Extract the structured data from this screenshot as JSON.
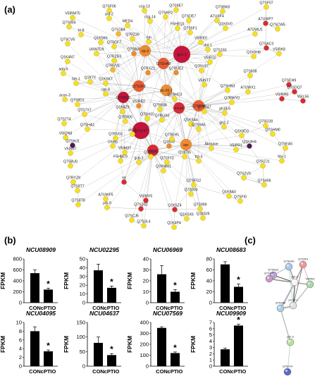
{
  "figure": {
    "panel_a_label": "(a)",
    "panel_b_label": "(b)",
    "panel_c_label": "(c)"
  },
  "network_a": {
    "node_colors": {
      "yellow": "#f6e020",
      "yellow_orange": "#f5b82a",
      "orange": "#f08a32",
      "red_orange": "#ea5a35",
      "red": "#d82a3a",
      "crimson": "#c4143e",
      "purple": "#4a1a5e"
    },
    "nodes": [
      {
        "id": "Q7SF06",
        "label": "Q7SF06",
        "color": "yellow",
        "hub": 0
      },
      {
        "id": "ccg-13",
        "label": "ccg-13",
        "color": "yellow",
        "hub": 0
      },
      {
        "id": "Q7S9E7",
        "label": "Q7S9E7",
        "color": "yellow",
        "hub": 0
      },
      {
        "id": "Q7SAP2",
        "label": "Q7SAP2",
        "color": "yellow",
        "hub": 0
      },
      {
        "id": "Q7SBK8",
        "label": "Q7SBK8",
        "color": "yellow",
        "hub": 0
      },
      {
        "id": "Q7SF07",
        "label": "Q7SF07",
        "color": "yellow",
        "hub": 0
      },
      {
        "id": "V5IRM75",
        "label": "V5IRM75",
        "color": "yellow",
        "hub": 0
      },
      {
        "id": "pol-2",
        "label": "pol-2",
        "color": "yellow",
        "hub": 0
      },
      {
        "id": "ccg-14",
        "label": "ccg-14",
        "color": "yellow",
        "hub": 0
      },
      {
        "id": "Q7SDE7",
        "label": "Q7SDE7",
        "color": "yellow",
        "hub": 0
      },
      {
        "id": "A7UXF4",
        "label": "A7UXF4",
        "color": "yellow",
        "hub": 0
      },
      {
        "id": "A7UWP7",
        "label": "A7UWP7",
        "color": "red",
        "hub": 0
      },
      {
        "id": "Q7S059",
        "label": "Q7S059",
        "color": "yellow",
        "hub": 0
      },
      {
        "id": "MED4",
        "label": "MED4",
        "color": "yellow",
        "hub": 0
      },
      {
        "id": "F5HEQ1",
        "label": "F5HEQ1",
        "color": "yellow",
        "hub": 0
      },
      {
        "id": "Q7S5F1",
        "label": "Q7S5F1",
        "color": "yellow",
        "hub": 0
      },
      {
        "id": "Q1K6V0",
        "label": "Q1K6V0",
        "color": "yellow",
        "hub": 0
      },
      {
        "id": "Q7SCW5",
        "label": "Q7SCW5",
        "color": "yellow",
        "hub": 0
      },
      {
        "id": "trl-8",
        "label": "trl-8",
        "color": "yellow",
        "hub": 0
      },
      {
        "id": "Q7S1B4",
        "label": "Q7S1B4",
        "color": "yellow_orange",
        "hub": 0
      },
      {
        "id": "Q7RZ39",
        "label": "Q7RZ39",
        "color": "yellow",
        "hub": 0
      },
      {
        "id": "rgn",
        "label": "rgn",
        "color": "yellow",
        "hub": 0
      },
      {
        "id": "gsh-3",
        "label": "gsh-3",
        "color": "crimson",
        "hub": 2
      },
      {
        "id": "V5IRE0",
        "label": "V5IRE0",
        "color": "yellow",
        "hub": 0
      },
      {
        "id": "A7UWU1",
        "label": "A7UWU1",
        "color": "yellow",
        "hub": 0
      },
      {
        "id": "Q7SCV5",
        "label": "Q7SCV5",
        "color": "yellow",
        "hub": 0
      },
      {
        "id": "Q1K5K6",
        "label": "Q1K5K6",
        "color": "yellow",
        "hub": 0
      },
      {
        "id": "Q7SCF7",
        "label": "Q7SCF7",
        "color": "yellow",
        "hub": 0
      },
      {
        "id": "dol-1",
        "label": "dol-1",
        "color": "yellow",
        "hub": 0
      },
      {
        "id": "Q7SAC3",
        "label": "Q7SAC3",
        "color": "red",
        "hub": 0
      },
      {
        "id": "V5IRK8",
        "label": "V5IRK8",
        "color": "yellow",
        "hub": 0
      },
      {
        "id": "U6W7D9",
        "label": "U6W7D9",
        "color": "yellow",
        "hub": 0
      },
      {
        "id": "Q7SBJ9",
        "label": "Q7SBJ9",
        "color": "orange",
        "hub": 0
      },
      {
        "id": "rip-3",
        "label": "rip-3",
        "color": "orange",
        "hub": 1
      },
      {
        "id": "Q7S150",
        "label": "Q7S150",
        "color": "yellow",
        "hub": 0
      },
      {
        "id": "Q1K6H6",
        "label": "Q1K6H6",
        "color": "yellow",
        "hub": 0
      },
      {
        "id": "Q1K4N7",
        "label": "Q1K4N7",
        "color": "yellow",
        "hub": 0
      },
      {
        "id": "Q7RZB3",
        "label": "Q7RZB3",
        "color": "yellow",
        "hub": 0
      },
      {
        "id": "Q7SHA9",
        "label": "Q7SHA9",
        "color": "red_orange",
        "hub": 1
      },
      {
        "id": "V5IR10",
        "label": "V5IR10",
        "color": "yellow",
        "hub": 0
      },
      {
        "id": "Q7RV37",
        "label": "Q7RV37",
        "color": "yellow",
        "hub": 0
      },
      {
        "id": "Q7S838",
        "label": "Q7S838",
        "color": "yellow",
        "hub": 0
      },
      {
        "id": "ada-5",
        "label": "ada-5",
        "color": "yellow",
        "hub": 0
      },
      {
        "id": "Q7RXZ1",
        "label": "Q7RXZ1",
        "color": "orange",
        "hub": 0
      },
      {
        "id": "Q7RUE2",
        "label": "Q7RUE2",
        "color": "orange",
        "hub": 0
      },
      {
        "id": "Q7RVV1",
        "label": "Q7RVV1",
        "color": "yellow_orange",
        "hub": 0
      },
      {
        "id": "fah-1",
        "label": "fah-1",
        "color": "yellow",
        "hub": 0
      },
      {
        "id": "Q1K7Y",
        "label": "Q1K7Y",
        "color": "yellow",
        "hub": 0
      },
      {
        "id": "Q1K6K7",
        "label": "Q1K6K7",
        "color": "yellow",
        "hub": 0
      },
      {
        "id": "Q7S3F3",
        "label": "Q7S3F3",
        "color": "red_orange",
        "hub": 1
      },
      {
        "id": "ph-26-1",
        "label": "ph-26-1",
        "color": "orange",
        "hub": 1
      },
      {
        "id": "V5INT7",
        "label": "V5INT7",
        "color": "yellow",
        "hub": 0
      },
      {
        "id": "Q7SHN3",
        "label": "Q7SHN3",
        "color": "yellow",
        "hub": 0
      },
      {
        "id": "A7UWX1",
        "label": "A7UWX1",
        "color": "yellow",
        "hub": 0
      },
      {
        "id": "Q7SEH9",
        "label": "Q7SEH9",
        "color": "red",
        "hub": 0
      },
      {
        "id": "Q7SDQ7",
        "label": "Q7SDQ7",
        "color": "red",
        "hub": 0
      },
      {
        "id": "acon-3",
        "label": "acon-3",
        "color": "yellow",
        "hub": 0
      },
      {
        "id": "Q7S8D1",
        "label": "Q7S8D1",
        "color": "yellow",
        "hub": 0
      },
      {
        "id": "cpr-8",
        "label": "cpr-8",
        "color": "yellow",
        "hub": 0
      },
      {
        "id": "Q7SAQ1",
        "label": "Q7SAQ1",
        "color": "crimson",
        "hub": 1
      },
      {
        "id": "Q7SHC3",
        "label": "Q7SHC3",
        "color": "yellow",
        "hub": 0
      },
      {
        "id": "Q7RWY0",
        "label": "Q7RWY0",
        "color": "yellow",
        "hub": 0
      },
      {
        "id": "V5IRH9",
        "label": "V5IRH9",
        "color": "red",
        "hub": 0
      },
      {
        "id": "V5IL56",
        "label": "V5IL56",
        "color": "red",
        "hub": 0
      },
      {
        "id": "Q7S7X7",
        "label": "Q7S7X7",
        "color": "yellow",
        "hub": 0
      },
      {
        "id": "Q1K4Z9",
        "label": "Q1K4Z9",
        "color": "yellow",
        "hub": 0
      },
      {
        "id": "V5IRE2",
        "label": "V5IRE2",
        "color": "orange",
        "hub": 0
      },
      {
        "id": "Q7SE08",
        "label": "Q7SE08",
        "color": "yellow",
        "hub": 0
      },
      {
        "id": "mca4",
        "label": "mca4",
        "color": "red",
        "hub": 1
      },
      {
        "id": "Q7SP44",
        "label": "Q7SP44",
        "color": "red_orange",
        "hub": 1
      },
      {
        "id": "Q7S947",
        "label": "Q7S947",
        "color": "yellow",
        "hub": 0
      },
      {
        "id": "gh18-5",
        "label": "gh18-5",
        "color": "yellow",
        "hub": 0
      },
      {
        "id": "Q7S2T4",
        "label": "Q7S2T4",
        "color": "yellow",
        "hub": 0
      },
      {
        "id": "Q7SHA1",
        "label": "Q7SHA1",
        "color": "yellow",
        "hub": 0
      },
      {
        "id": "Q7SH10",
        "label": "Q7SH10",
        "color": "yellow",
        "hub": 0
      },
      {
        "id": "Q7RV05",
        "label": "Q7RV05",
        "color": "yellow",
        "hub": 0
      },
      {
        "id": "Q7S147",
        "label": "Q7S147",
        "color": "crimson",
        "hub": 2
      },
      {
        "id": "Q7RUX0",
        "label": "Q7RUX0",
        "color": "yellow",
        "hub": 0
      },
      {
        "id": "Q1K5A4",
        "label": "Q1K5A4",
        "color": "yellow",
        "hub": 0
      },
      {
        "id": "Q7S9A5",
        "label": "Q7S9A5",
        "color": "yellow",
        "hub": 0
      },
      {
        "id": "gh2-2",
        "label": "gh2-2",
        "color": "yellow",
        "hub": 0
      },
      {
        "id": "pic-1",
        "label": "pic-1",
        "color": "yellow",
        "hub": 0
      },
      {
        "id": "Q1K8D3",
        "label": "Q1K8D3",
        "color": "yellow",
        "hub": 0
      },
      {
        "id": "Q7SG28",
        "label": "Q7SG28",
        "color": "yellow",
        "hub": 0
      },
      {
        "id": "Q7SHM0",
        "label": "Q7SHM0",
        "color": "yellow",
        "hub": 0
      },
      {
        "id": "V5IQN8",
        "label": "V5IQN8",
        "color": "yellow",
        "hub": 0
      },
      {
        "id": "Unrep",
        "label": "Unrep",
        "color": "yellow",
        "hub": 0
      },
      {
        "id": "acon",
        "label": "acon",
        "color": "red",
        "hub": 1
      },
      {
        "id": "Q7RV03",
        "label": "Q7RV03",
        "color": "yellow",
        "hub": 0
      },
      {
        "id": "Q1K63",
        "label": "Q1K63",
        "color": "orange",
        "hub": 0
      },
      {
        "id": "spc",
        "label": "spc",
        "color": "orange",
        "hub": 1
      },
      {
        "id": "Q7SEA5",
        "label": "Q7SEA5",
        "color": "yellow",
        "hub": 0
      },
      {
        "id": "Q7SHJ1",
        "label": "Q7SHJ1",
        "color": "purple",
        "hub": 0
      },
      {
        "id": "Q7SEH1",
        "label": "Q7SEH1",
        "color": "yellow",
        "hub": 0
      },
      {
        "id": "Atrmase",
        "label": "Atrmase",
        "color": "yellow",
        "hub": 0
      },
      {
        "id": "V5IPR1",
        "label": "V5IPR1",
        "color": "yellow",
        "hub": 0
      },
      {
        "id": "V5IR87",
        "label": "V5IR87",
        "color": "yellow",
        "hub": 0
      },
      {
        "id": "V5IM37",
        "label": "V5IM37",
        "color": "yellow",
        "hub": 0
      },
      {
        "id": "Q7S5X9",
        "label": "Q7S5X9",
        "color": "yellow",
        "hub": 0
      },
      {
        "id": "Q1K7I5",
        "label": "Q1K7I5",
        "color": "yellow",
        "hub": 0
      },
      {
        "id": "Q1K4H4",
        "label": "Q1K4H4",
        "color": "purple",
        "hub": 0
      },
      {
        "id": "fdx-1",
        "label": "fdx-1",
        "color": "yellow",
        "hub": 0
      },
      {
        "id": "Q7S8U0",
        "label": "Q7S8U0",
        "color": "yellow",
        "hub": 0
      },
      {
        "id": "F5HBC9",
        "label": "F5HBC9",
        "color": "yellow",
        "hub": 0
      },
      {
        "id": "gcb-1",
        "label": "gcb-1",
        "color": "yellow",
        "hub": 0
      },
      {
        "id": "Q7S5Y2",
        "label": "Q7S5Y2",
        "color": "yellow",
        "hub": 0
      },
      {
        "id": "trp-3",
        "label": "trp-3",
        "color": "yellow",
        "hub": 0
      },
      {
        "id": "Q7RZJ1",
        "label": "Q7RZJ1",
        "color": "yellow",
        "hub": 0
      },
      {
        "id": "Q7RYZ8",
        "label": "Q7RYZ8",
        "color": "yellow",
        "hub": 0
      },
      {
        "id": "Q7RWH1",
        "label": "Q7RWH1",
        "color": "yellow",
        "hub": 0
      },
      {
        "id": "Q7S2V0",
        "label": "Q7S2V0",
        "color": "yellow",
        "hub": 0
      },
      {
        "id": "Q7S406",
        "label": "Q7S406",
        "color": "yellow",
        "hub": 0
      },
      {
        "id": "Q7S8T7",
        "label": "Q7S8T7",
        "color": "yellow",
        "hub": 0
      },
      {
        "id": "nit",
        "label": "nit",
        "color": "red",
        "hub": 0
      },
      {
        "id": "A7UWF5",
        "label": "A7UWF5",
        "color": "yellow",
        "hub": 0
      },
      {
        "id": "Q7SFG2",
        "label": "Q7SFG2",
        "color": "yellow",
        "hub": 0
      },
      {
        "id": "Q1K8A0",
        "label": "Q1K8A0",
        "color": "yellow",
        "hub": 0
      },
      {
        "id": "Q7S8T8",
        "label": "Q7S8T8",
        "color": "yellow",
        "hub": 0
      },
      {
        "id": "V5IMV5",
        "label": "V5IMV5",
        "color": "red",
        "hub": 0
      },
      {
        "id": "Q7S000",
        "label": "Q7S000",
        "color": "yellow",
        "hub": 0
      },
      {
        "id": "Q7SFI0",
        "label": "Q7SFI0",
        "color": "yellow",
        "hub": 0
      },
      {
        "id": "prk-9",
        "label": "prk-9",
        "color": "yellow",
        "hub": 0
      },
      {
        "id": "Q7S2S2",
        "label": "Q7S2S2",
        "color": "red",
        "hub": 0
      },
      {
        "id": "Q1K5Z4",
        "label": "Q1K5Z4",
        "color": "red",
        "hub": 0
      },
      {
        "id": "Q7S999",
        "label": "Q7S999",
        "color": "yellow",
        "hub": 0
      },
      {
        "id": "Q1K8J9",
        "label": "Q1K8J9",
        "color": "yellow",
        "hub": 0
      },
      {
        "id": "Q7SCJ6",
        "label": "Q7SCJ6",
        "color": "yellow",
        "hub": 0
      },
      {
        "id": "Q1K5X6",
        "label": "Q1K5X6",
        "color": "yellow",
        "hub": 0
      },
      {
        "id": "Q7S3L4",
        "label": "Q7S3L4",
        "color": "yellow",
        "hub": 0
      },
      {
        "id": "Q1K4P4",
        "label": "Q1K4P4",
        "color": "yellow",
        "hub": 0
      }
    ]
  },
  "chart_data": [
    {
      "type": "bar",
      "title": "NCU08909",
      "ylabel": "FPKM",
      "categories": [
        "CON",
        "cPTIO"
      ],
      "values": [
        540,
        240
      ],
      "errors": [
        60,
        25
      ],
      "ylim": [
        0,
        800
      ],
      "yticks": [
        0,
        200,
        400,
        600,
        800
      ],
      "significant": [
        "",
        "*"
      ]
    },
    {
      "type": "bar",
      "title": "NCU02295",
      "ylabel": "FPKM",
      "categories": [
        "CON",
        "cPTIO"
      ],
      "values": [
        37,
        17
      ],
      "errors": [
        7,
        2
      ],
      "ylim": [
        0,
        50
      ],
      "yticks": [
        0,
        10,
        20,
        30,
        40,
        50
      ],
      "significant": [
        "",
        "*"
      ]
    },
    {
      "type": "bar",
      "title": "NCU06969",
      "ylabel": "FPKM",
      "categories": [
        "CON",
        "cPTIO"
      ],
      "values": [
        26,
        10
      ],
      "errors": [
        8,
        2
      ],
      "ylim": [
        0,
        40
      ],
      "yticks": [
        0,
        10,
        20,
        30,
        40
      ],
      "significant": [
        "",
        "*"
      ]
    },
    {
      "type": "bar",
      "title": "NCU08683",
      "ylabel": "FPKM",
      "categories": [
        "CON",
        "cPTIO"
      ],
      "values": [
        70,
        29
      ],
      "errors": [
        5,
        5
      ],
      "ylim": [
        0,
        80
      ],
      "yticks": [
        0,
        20,
        40,
        60,
        80
      ],
      "significant": [
        "",
        "*"
      ]
    },
    {
      "type": "bar",
      "title": "NCU04095",
      "ylabel": "FPKM",
      "categories": [
        "CON",
        "cPTIO"
      ],
      "values": [
        8,
        3.4
      ],
      "errors": [
        1,
        0.3
      ],
      "ylim": [
        0,
        10
      ],
      "yticks": [
        0,
        2,
        4,
        6,
        8,
        10
      ],
      "significant": [
        "",
        "*"
      ]
    },
    {
      "type": "bar",
      "title": "NCU04637",
      "ylabel": "FPKM",
      "categories": [
        "CON",
        "cPTIO"
      ],
      "values": [
        80,
        38
      ],
      "errors": [
        20,
        5
      ],
      "ylim": [
        0,
        150
      ],
      "yticks": [
        0,
        50,
        100,
        150
      ],
      "significant": [
        "",
        "*"
      ]
    },
    {
      "type": "bar",
      "title": "NCU07569",
      "ylabel": "FPKM",
      "categories": [
        "CON",
        "cPTIO"
      ],
      "values": [
        350,
        120
      ],
      "errors": [
        10,
        10
      ],
      "ylim": [
        0,
        400
      ],
      "yticks": [
        0,
        100,
        200,
        300,
        400
      ],
      "significant": [
        "",
        "*"
      ]
    },
    {
      "type": "bar",
      "title": "NCU09909",
      "ylabel": "FPKM",
      "categories": [
        "CON",
        "cPTIO"
      ],
      "values": [
        2.7,
        6.5
      ],
      "errors": [
        0.2,
        0.2
      ],
      "ylim": [
        0,
        7
      ],
      "yticks": [
        0,
        1,
        2,
        3,
        4,
        5,
        6,
        7
      ],
      "significant": [
        "",
        "*"
      ]
    }
  ],
  "network_c": {
    "nodes": [
      {
        "id": "Q7SAQ1",
        "label": "Q7SAQ1",
        "color": "#b8a2d8"
      },
      {
        "id": "Q7SHA9",
        "label": "Q7SHA9",
        "color": "#a6c8e8"
      },
      {
        "id": "Q7S3F3",
        "label": "Q7S3F3",
        "color": "#e89a9a"
      },
      {
        "id": "Q7S147",
        "label": "Q7S147",
        "color": "#c89ac8"
      },
      {
        "id": "gsh-3",
        "label": "gsh-3",
        "color": "#f6f6f6"
      },
      {
        "id": "V5IRE0",
        "label": "V5IRE0",
        "color": "#a8d8a8"
      },
      {
        "id": "ph-26-1",
        "label": "ph-26-1",
        "color": "#e0e0e0"
      },
      {
        "id": "Q7S3A8",
        "label": "Q7S3A8",
        "color": "#a8d0e8"
      },
      {
        "id": "gsh-3b",
        "label": "gsh-3",
        "color": "#b8e0a0"
      },
      {
        "id": "Q7S2V4",
        "label": "Q7S2V4",
        "color": "#5a6ac8"
      }
    ]
  }
}
